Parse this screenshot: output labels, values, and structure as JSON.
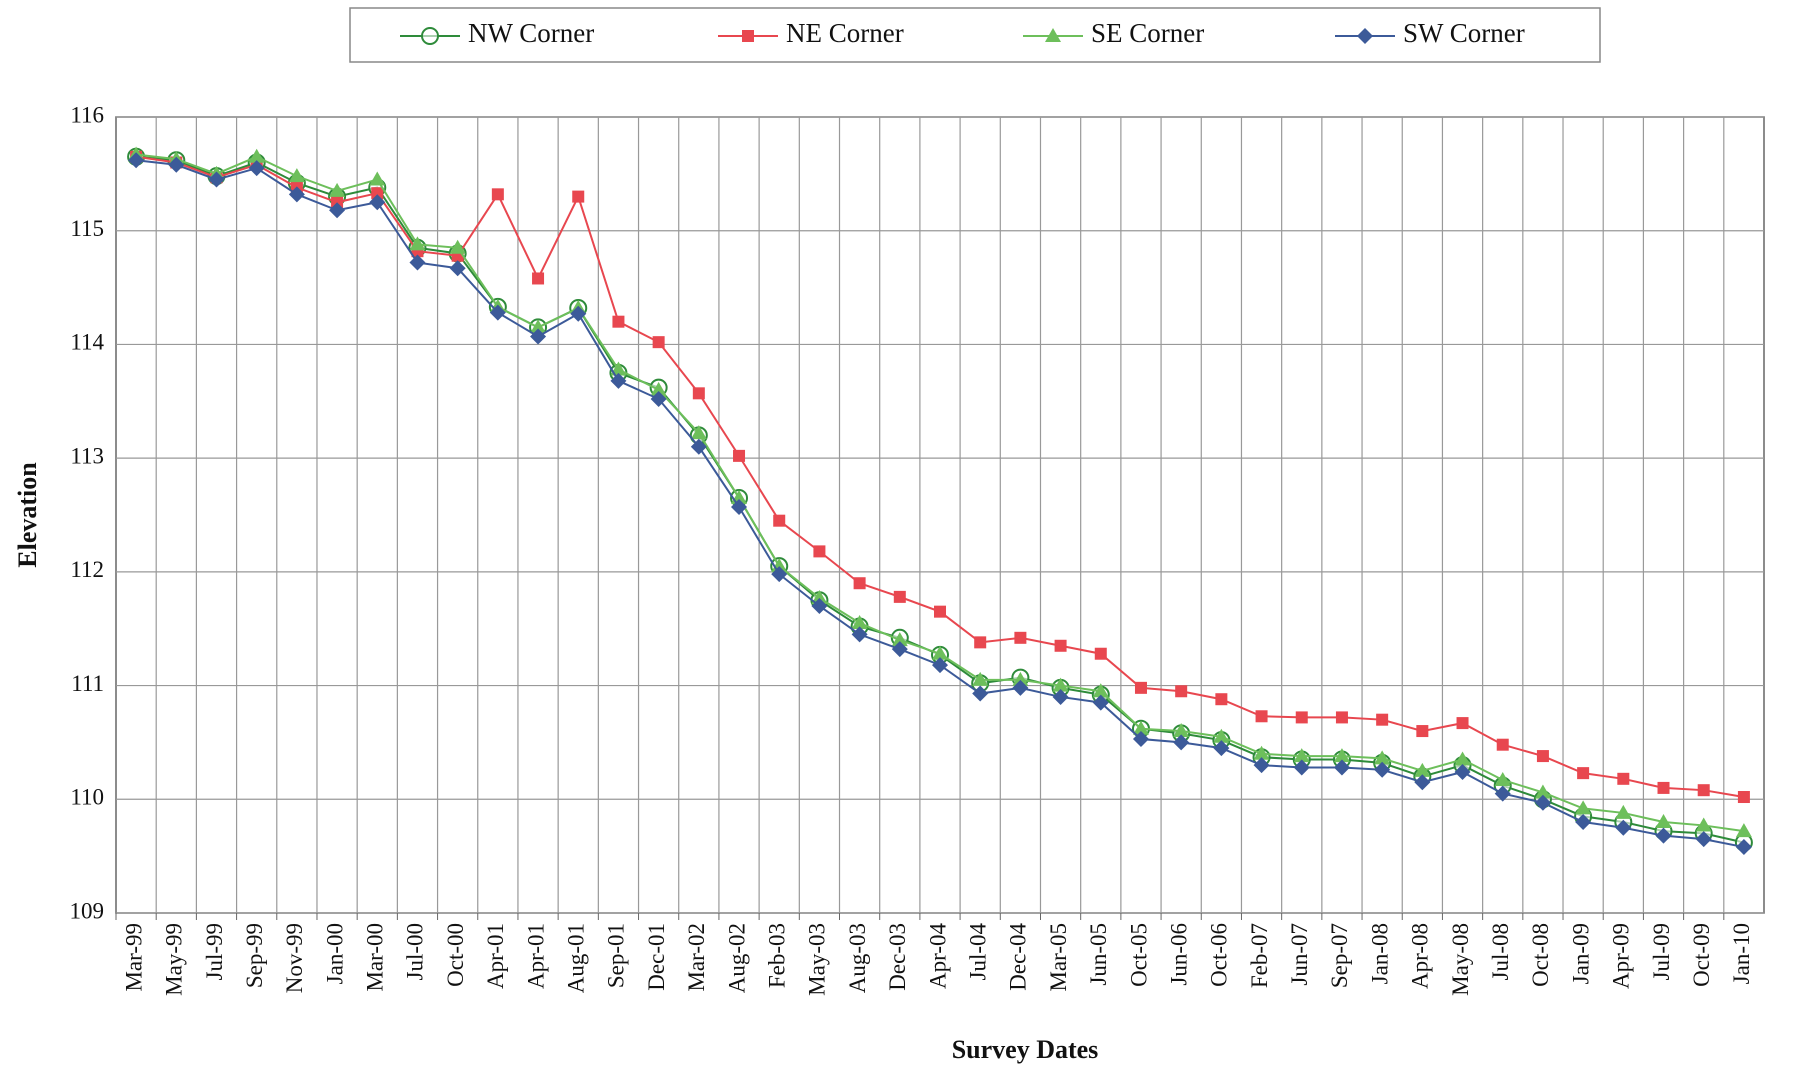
{
  "chart_data": {
    "type": "line",
    "x_label": "Survey Dates",
    "y_label": "Elevation",
    "categories": [
      "Mar-99",
      "May-99",
      "Jul-99",
      "Sep-99",
      "Nov-99",
      "Jan-00",
      "Mar-00",
      "Jul-00",
      "Oct-00",
      "Apr-01",
      "Apr-01",
      "Aug-01",
      "Sep-01",
      "Dec-01",
      "Mar-02",
      "Aug-02",
      "Feb-03",
      "May-03",
      "Aug-03",
      "Dec-03",
      "Apr-04",
      "Jul-04",
      "Dec-04",
      "Mar-05",
      "Jun-05",
      "Oct-05",
      "Jun-06",
      "Oct-06",
      "Feb-07",
      "Jun-07",
      "Sep-07",
      "Jan-08",
      "Apr-08",
      "May-08",
      "Jul-08",
      "Oct-08",
      "Jan-09",
      "Apr-09",
      "Jul-09",
      "Oct-09",
      "Jan-10"
    ],
    "series": [
      {
        "name": "NW Corner",
        "color": "#2e8b3a",
        "marker": "circle",
        "values": [
          115.65,
          115.62,
          115.48,
          115.6,
          115.42,
          115.3,
          115.38,
          114.85,
          114.8,
          114.33,
          114.15,
          114.32,
          113.75,
          113.62,
          113.2,
          112.65,
          112.05,
          111.75,
          111.52,
          111.42,
          111.27,
          111.02,
          111.07,
          110.98,
          110.92,
          110.62,
          110.58,
          110.52,
          110.37,
          110.35,
          110.35,
          110.32,
          110.2,
          110.3,
          110.12,
          110.0,
          109.85,
          109.8,
          109.72,
          109.7,
          109.62
        ]
      },
      {
        "name": "NE Corner",
        "color": "#e8474f",
        "marker": "square",
        "values": [
          115.65,
          115.6,
          115.47,
          115.58,
          115.38,
          115.25,
          115.33,
          114.82,
          114.78,
          115.32,
          114.58,
          115.3,
          114.2,
          114.02,
          113.57,
          113.02,
          112.45,
          112.18,
          111.9,
          111.78,
          111.65,
          111.38,
          111.42,
          111.35,
          111.28,
          110.98,
          110.95,
          110.88,
          110.73,
          110.72,
          110.72,
          110.7,
          110.6,
          110.67,
          110.48,
          110.38,
          110.23,
          110.18,
          110.1,
          110.08,
          110.02
        ]
      },
      {
        "name": "SE Corner",
        "color": "#6dbf5b",
        "marker": "triangle",
        "values": [
          115.67,
          115.63,
          115.5,
          115.65,
          115.48,
          115.35,
          115.45,
          114.88,
          114.85,
          114.33,
          114.15,
          114.32,
          113.78,
          113.6,
          113.22,
          112.65,
          112.05,
          111.77,
          111.55,
          111.4,
          111.28,
          111.05,
          111.05,
          111.0,
          110.95,
          110.62,
          110.6,
          110.55,
          110.4,
          110.38,
          110.38,
          110.36,
          110.25,
          110.35,
          110.17,
          110.06,
          109.92,
          109.88,
          109.8,
          109.77,
          109.72
        ]
      },
      {
        "name": "SW Corner",
        "color": "#3c5a99",
        "marker": "diamond",
        "values": [
          115.62,
          115.58,
          115.45,
          115.55,
          115.32,
          115.18,
          115.25,
          114.72,
          114.67,
          114.28,
          114.07,
          114.27,
          113.68,
          113.52,
          113.1,
          112.57,
          111.98,
          111.7,
          111.45,
          111.32,
          111.18,
          110.93,
          110.98,
          110.9,
          110.85,
          110.53,
          110.5,
          110.45,
          110.3,
          110.28,
          110.28,
          110.26,
          110.15,
          110.24,
          110.05,
          109.97,
          109.8,
          109.75,
          109.68,
          109.65,
          109.58
        ]
      }
    ],
    "ylim": [
      109,
      116
    ],
    "yticks": [
      109,
      110,
      111,
      112,
      113,
      114,
      115,
      116
    ],
    "grid": true,
    "legend": "top"
  }
}
